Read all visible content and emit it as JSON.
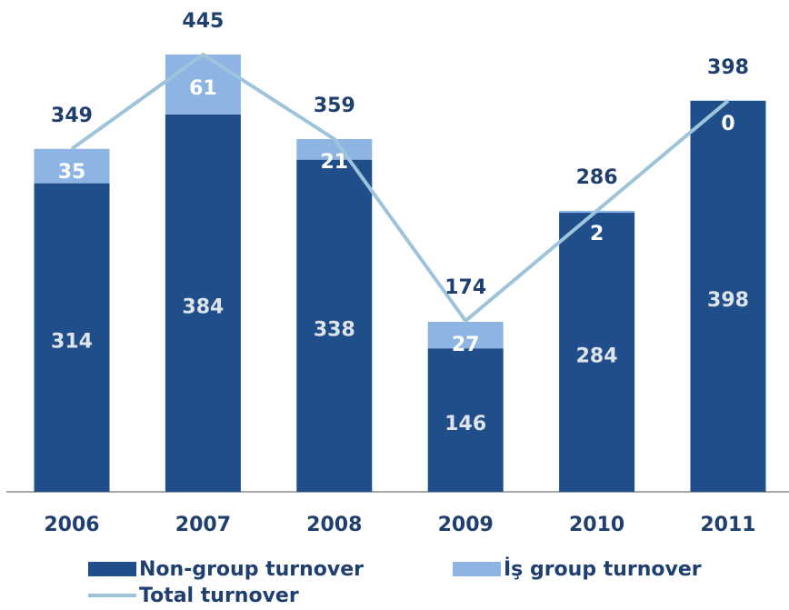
{
  "chart_data": {
    "type": "bar",
    "stacked": true,
    "categories": [
      "2006",
      "2007",
      "2008",
      "2009",
      "2010",
      "2011"
    ],
    "series": [
      {
        "name": "Non-group turnover",
        "type": "bar",
        "color": "#1f4e8a",
        "label_color": "#dfe4ea",
        "values": [
          314,
          384,
          338,
          146,
          284,
          398
        ]
      },
      {
        "name": "İş group turnover",
        "type": "bar",
        "color": "#8db4e2",
        "label_color": "#ffffff",
        "values": [
          35,
          61,
          21,
          27,
          2,
          0
        ]
      },
      {
        "name": "Total turnover",
        "type": "line",
        "color": "#9ec4dc",
        "label_color": "#1f3f6e",
        "values": [
          349,
          445,
          359,
          174,
          286,
          398
        ]
      }
    ]
  }
}
